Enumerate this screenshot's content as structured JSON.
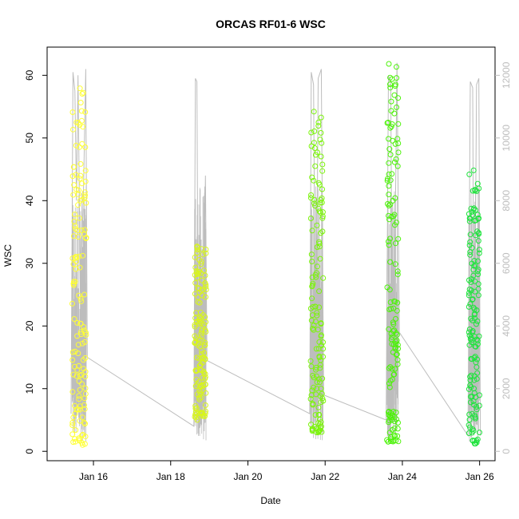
{
  "chart_data": {
    "type": "scatter",
    "title": "ORCAS RF01-6 WSC",
    "xlabel": "Date",
    "ylabel": "WSC",
    "x_ticks": [
      "Jan 16",
      "Jan 18",
      "Jan 20",
      "Jan 22",
      "Jan 24",
      "Jan 26"
    ],
    "x_tick_days": [
      16,
      18,
      20,
      22,
      24,
      26
    ],
    "xlim": [
      14.8,
      26.4
    ],
    "ylim": [
      -1.5,
      64.5
    ],
    "y_ticks": [
      0,
      10,
      20,
      30,
      40,
      50,
      60
    ],
    "y2_ticks": [
      0,
      2000,
      4000,
      6000,
      8000,
      10000,
      12000
    ],
    "y2lim": [
      -300,
      12900
    ],
    "grid": false,
    "point_style": "open-circle",
    "flights": [
      {
        "start": 15.45,
        "end": 15.82,
        "color": "#ffff33",
        "ymin": 1,
        "ymax": 60.5
      },
      {
        "start": 18.62,
        "end": 18.92,
        "color": "#d8f51c",
        "ymin": 5,
        "ymax": 33.7
      },
      {
        "start": 21.62,
        "end": 21.95,
        "color": "#7cf50b",
        "ymin": 3,
        "ymax": 54.5
      },
      {
        "start": 23.6,
        "end": 23.9,
        "color": "#4df20a",
        "ymin": 1.5,
        "ymax": 62.2
      },
      {
        "start": 25.72,
        "end": 26.0,
        "color": "#1fe33d",
        "ymin": 1,
        "ymax": 45
      }
    ],
    "altitude_series": {
      "color": "#bdbdbd",
      "points": [
        [
          15.42,
          1200
        ],
        [
          15.47,
          12100
        ],
        [
          15.52,
          11500
        ],
        [
          15.56,
          8000
        ],
        [
          15.6,
          12000
        ],
        [
          15.66,
          5000
        ],
        [
          15.74,
          8200
        ],
        [
          15.8,
          12200
        ],
        [
          15.84,
          3000
        ],
        [
          18.6,
          800
        ],
        [
          18.64,
          11900
        ],
        [
          18.68,
          11800
        ],
        [
          18.72,
          1500
        ],
        [
          18.78,
          6000
        ],
        [
          18.84,
          3500
        ],
        [
          18.9,
          8800
        ],
        [
          18.94,
          2900
        ],
        [
          21.6,
          1200
        ],
        [
          21.64,
          12100
        ],
        [
          21.7,
          11700
        ],
        [
          21.76,
          1200
        ],
        [
          21.82,
          11900
        ],
        [
          21.9,
          12200
        ],
        [
          21.96,
          1800
        ],
        [
          23.58,
          1000
        ],
        [
          23.64,
          12000
        ],
        [
          23.7,
          11700
        ],
        [
          23.74,
          2600
        ],
        [
          23.8,
          5500
        ],
        [
          23.86,
          12400
        ],
        [
          23.92,
          3800
        ],
        [
          25.7,
          500
        ],
        [
          25.76,
          11800
        ],
        [
          25.82,
          11600
        ],
        [
          25.86,
          1000
        ],
        [
          25.92,
          11700
        ],
        [
          25.98,
          11900
        ],
        [
          26.02,
          500
        ]
      ]
    }
  }
}
